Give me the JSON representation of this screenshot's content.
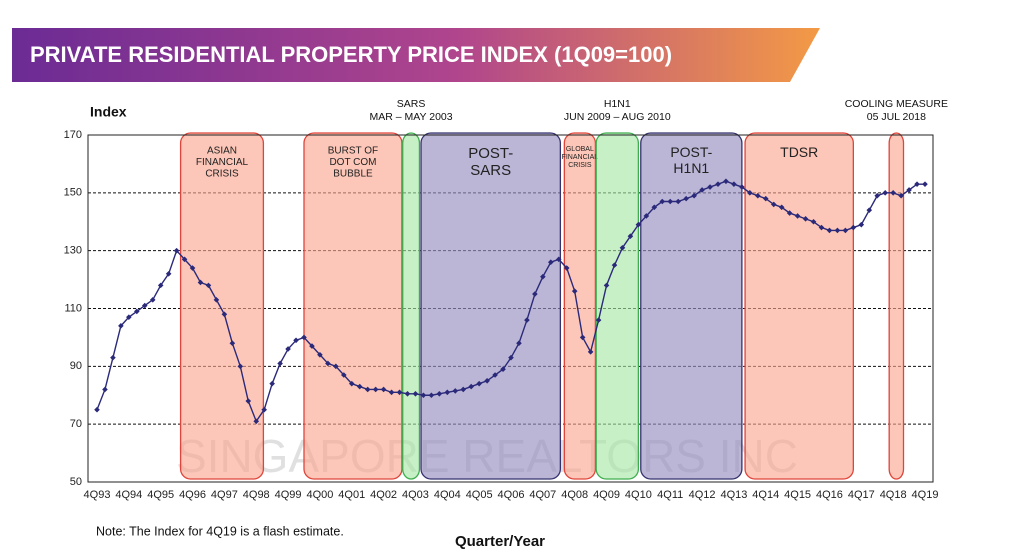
{
  "chart_data": {
    "type": "line",
    "title": "PRIVATE RESIDENTIAL PROPERTY PRICE INDEX (1Q09=100)",
    "y_label": "Index",
    "x_label": "Quarter/Year",
    "note": "Note: The Index for 4Q19 is a flash estimate.",
    "watermark": "SINGAPORE REALTORS INC",
    "categories": [
      "4Q93",
      null,
      null,
      null,
      "4Q94",
      null,
      null,
      null,
      "4Q95",
      null,
      null,
      null,
      "4Q96",
      null,
      null,
      null,
      "4Q97",
      null,
      null,
      null,
      "4Q98",
      null,
      null,
      null,
      "4Q99",
      null,
      null,
      null,
      "4Q00",
      null,
      null,
      null,
      "4Q01",
      null,
      null,
      null,
      "4Q02",
      null,
      null,
      null,
      "4Q03",
      null,
      null,
      null,
      "4Q04",
      null,
      null,
      null,
      "4Q05",
      null,
      null,
      null,
      "4Q06",
      null,
      null,
      null,
      "4Q07",
      null,
      null,
      null,
      "4Q08",
      null,
      null,
      null,
      "4Q09",
      null,
      null,
      null,
      "4Q10",
      null,
      null,
      null,
      "4Q11",
      null,
      null,
      null,
      "4Q12",
      null,
      null,
      null,
      "4Q13",
      null,
      null,
      null,
      "4Q14",
      null,
      null,
      null,
      "4Q15",
      null,
      null,
      null,
      "4Q16",
      null,
      null,
      null,
      "4Q17",
      null,
      null,
      null,
      "4Q18",
      null,
      null,
      null,
      "4Q19"
    ],
    "series": [
      {
        "name": "Index",
        "color": "#2b2a7a",
        "values": [
          75,
          82,
          93,
          104,
          107,
          109,
          111,
          113,
          118,
          122,
          130,
          127,
          124,
          119,
          118,
          113,
          108,
          98,
          90,
          78,
          71,
          75,
          84,
          91,
          96,
          99,
          100,
          97,
          94,
          91,
          90,
          87,
          84,
          83,
          82,
          82,
          82,
          81,
          81,
          80.5,
          80.5,
          80,
          80,
          80.5,
          81,
          81.5,
          82,
          83,
          84,
          85,
          87,
          89,
          93,
          98,
          106,
          115,
          121,
          126,
          127,
          124,
          116,
          100,
          95,
          106,
          118,
          125,
          131,
          135,
          139,
          142,
          145,
          147,
          147,
          147,
          148,
          149,
          151,
          152,
          153,
          154,
          153,
          152,
          150,
          149,
          148,
          146,
          145,
          143,
          142,
          141,
          140,
          138,
          137,
          137,
          137,
          138,
          139,
          144,
          149,
          150,
          150,
          149,
          151,
          153,
          153
        ]
      }
    ],
    "ylim": [
      50,
      170
    ],
    "yticks": [
      50,
      70,
      90,
      110,
      130,
      150,
      170
    ],
    "grid": true,
    "periods": [
      {
        "lines": [
          "ASIAN",
          "FINANCIAL",
          "CRISIS"
        ],
        "start": 10.5,
        "end": 20.9,
        "color": "red"
      },
      {
        "lines": [
          "BURST OF",
          "DOT COM",
          "BUBBLE"
        ],
        "start": 26,
        "end": 38.3,
        "color": "red"
      },
      {
        "above": [
          "SARS",
          "MAR – MAY 2003"
        ],
        "start": 38.4,
        "end": 40.5,
        "color": "green"
      },
      {
        "lines": [
          "POST-",
          "SARS"
        ],
        "start": 40.7,
        "end": 58.2,
        "color": "purple"
      },
      {
        "lines": [
          "GLOBAL",
          "FINANCIAL",
          "CRISIS"
        ],
        "start": 58.7,
        "end": 62.6,
        "color": "red"
      },
      {
        "above": [
          "H1N1",
          "JUN 2009 – AUG 2010"
        ],
        "start": 62.7,
        "end": 68,
        "color": "green"
      },
      {
        "lines": [
          "POST-",
          "H1N1"
        ],
        "start": 68.3,
        "end": 81,
        "color": "purple"
      },
      {
        "lines": [
          "TDSR"
        ],
        "start": 81.4,
        "end": 95,
        "color": "red"
      },
      {
        "above": [
          "COOLING MEASURE",
          "05 JUL 2018"
        ],
        "start": 99.5,
        "end": 101.3,
        "color": "red"
      }
    ]
  }
}
